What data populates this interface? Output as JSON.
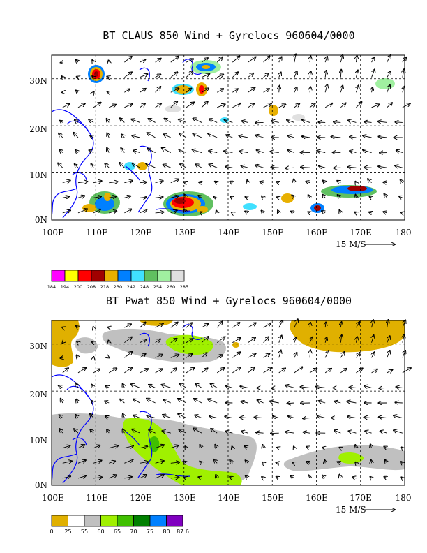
{
  "panels": [
    {
      "title": "BT CLAUS 850 Wind + Gyrelocs 960604/0000",
      "y_labels": [
        "30N",
        "20N",
        "10N",
        "0N"
      ],
      "x_labels": [
        "100E",
        "110E",
        "120E",
        "130E",
        "140E",
        "150E",
        "160E",
        "170E",
        "180"
      ],
      "vector_scale_label": "15 M/S",
      "colorbar": {
        "colors": [
          "#ff00ff",
          "#ffff00",
          "#ff0000",
          "#a00000",
          "#e8b000",
          "#0080ff",
          "#40e0ff",
          "#60c060",
          "#a0f0a0",
          "#e0e0e0"
        ],
        "labels": [
          "184",
          "194",
          "200",
          "208",
          "218",
          "230",
          "242",
          "248",
          "254",
          "260",
          "285"
        ]
      }
    },
    {
      "title": "BT Pwat 850 Wind + Gyrelocs 960604/0000",
      "y_labels": [
        "30N",
        "20N",
        "10N",
        "0N"
      ],
      "x_labels": [
        "100E",
        "110E",
        "120E",
        "130E",
        "140E",
        "150E",
        "160E",
        "170E",
        "180"
      ],
      "vector_scale_label": "15 M/S",
      "colorbar": {
        "colors": [
          "#e0b000",
          "#ffffff",
          "#c0c0c0",
          "#a0f000",
          "#40c000",
          "#008000",
          "#0080ff",
          "#8000c0"
        ],
        "labels": [
          "0",
          "25",
          "55",
          "60",
          "65",
          "70",
          "75",
          "80",
          "87.6"
        ]
      }
    }
  ],
  "map_data": {
    "lon_range": [
      100,
      180
    ],
    "lat_range": [
      0,
      35
    ],
    "grid_lons": [
      110,
      120,
      130,
      140,
      150,
      160,
      170
    ],
    "grid_lats": [
      10,
      20,
      30
    ]
  }
}
